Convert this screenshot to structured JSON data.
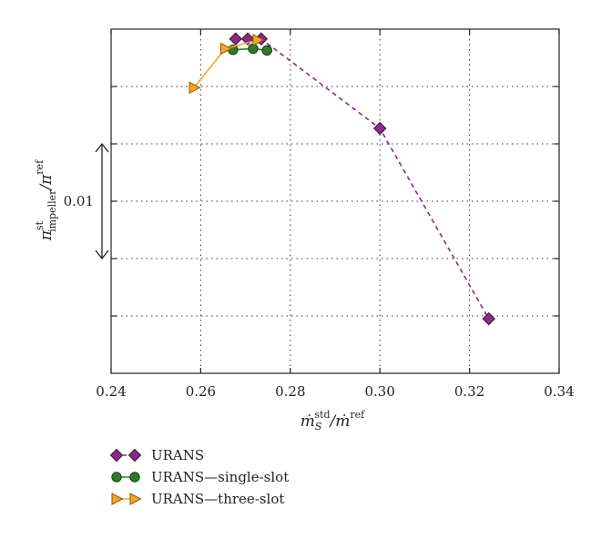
{
  "chart_data": {
    "type": "scatter",
    "title": "",
    "xlabel_main": "ṁ",
    "xlabel_sub": "S",
    "xlabel_sup": "std",
    "xlabel_mid": "/ṁ",
    "xlabel_sup2": "ref",
    "ylabel_main": "π",
    "ylabel_sup": "st",
    "ylabel_sub": "impeller",
    "ylabel_mid": "/π",
    "ylabel_sup2": "ref",
    "xlim": [
      0.24,
      0.34
    ],
    "x_ticks": [
      "0.24",
      "0.26",
      "0.28",
      "0.30",
      "0.32",
      "0.34"
    ],
    "x_tick_values": [
      0.24,
      0.26,
      0.28,
      0.3,
      0.32,
      0.34
    ],
    "ylim": [
      0,
      6
    ],
    "y_grid_values": [
      1,
      2,
      3,
      4,
      5
    ],
    "grid": true,
    "scale_bar": {
      "label": "0.01",
      "from": 2,
      "to": 4
    },
    "series": [
      {
        "name": "URANS",
        "marker": "diamond",
        "line": "dashed",
        "color": "#8b2a86",
        "stroke": "#3a0e3a",
        "x": [
          0.2678,
          0.2705,
          0.2735,
          0.3,
          0.3243
        ],
        "y": [
          5.83,
          5.83,
          5.83,
          4.27,
          0.95
        ]
      },
      {
        "name": "URANS—single-slot",
        "marker": "circle",
        "line": "solid",
        "color": "#2f7a2a",
        "stroke": "#133d10",
        "x": [
          0.2672,
          0.2717,
          0.2748
        ],
        "y": [
          5.64,
          5.66,
          5.63
        ]
      },
      {
        "name": "URANS—three-slot",
        "marker": "triangle-right",
        "line": "solid",
        "color": "#f5a623",
        "stroke": "#8a5a05",
        "x": [
          0.2585,
          0.2655,
          0.2727
        ],
        "y": [
          4.98,
          5.66,
          5.81
        ]
      }
    ],
    "legend_placement": "bottom-left"
  }
}
